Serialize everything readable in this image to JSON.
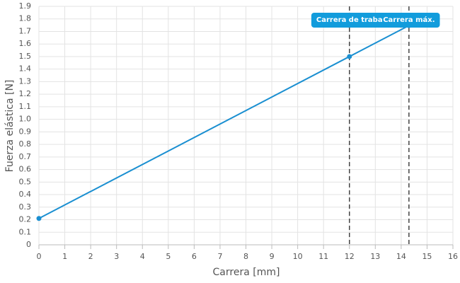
{
  "chart_data": {
    "type": "line",
    "xlabel": "Carrera [mm]",
    "ylabel": "Fuerza elástica [N]",
    "x": [
      0,
      12,
      14.3
    ],
    "series": [
      {
        "color": "#1a8fd1",
        "values": [
          0.21,
          1.5,
          1.747
        ]
      }
    ],
    "xlim": [
      0,
      16
    ],
    "xticks": [
      0,
      1,
      2,
      3,
      4,
      5,
      6,
      7,
      8,
      9,
      10,
      11,
      12,
      13,
      14,
      15,
      16
    ],
    "ylim": [
      0,
      1.9
    ],
    "yticks": [
      0,
      0.1,
      0.2,
      0.3,
      0.4,
      0.5,
      0.6,
      0.7,
      0.8,
      0.9,
      {
        "value": 1,
        "label": "1.0"
      },
      1.1,
      1.2,
      1.3,
      1.4,
      1.5,
      1.6,
      1.7,
      1.8,
      1.9
    ],
    "grid": true,
    "vlines": [
      {
        "x": 12,
        "label": "Carrera de traba"
      },
      {
        "x": 14.3,
        "label": "Carrera máx."
      }
    ],
    "annotation_color": "#129cdc"
  }
}
